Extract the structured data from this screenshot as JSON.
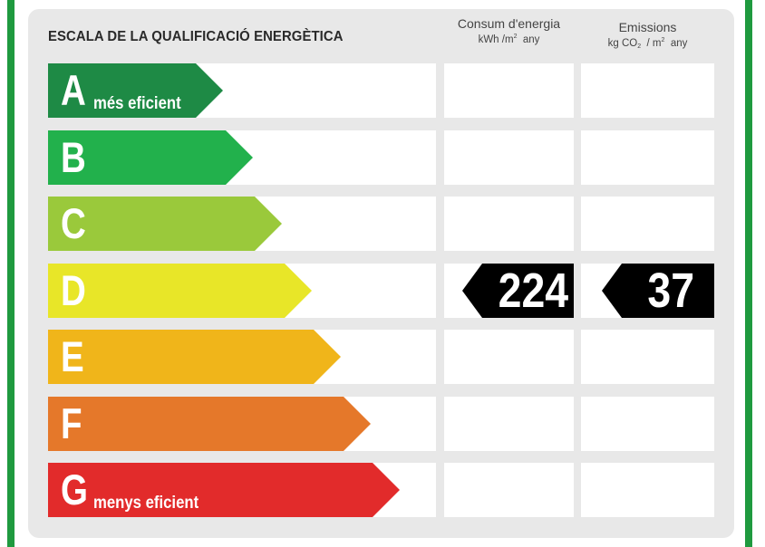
{
  "header": {
    "title": "ESCALA DE LA QUALIFICACIÓ ENERGÈTICA",
    "consumption": {
      "label": "Consum d'energia",
      "unit_base": "kWh /m",
      "unit_exp": "2",
      "unit_tail": "any"
    },
    "emissions": {
      "label": "Emissions",
      "unit_a": "kg CO",
      "unit_sub": "2",
      "unit_b": "/ m",
      "unit_exp": "2",
      "unit_tail": "any"
    }
  },
  "ratings": [
    {
      "letter": "A",
      "sublabel": "més eficient",
      "color": "#1e8a45"
    },
    {
      "letter": "B",
      "sublabel": "",
      "color": "#22b14c"
    },
    {
      "letter": "C",
      "sublabel": "",
      "color": "#9ac93b"
    },
    {
      "letter": "D",
      "sublabel": "",
      "color": "#e8e628"
    },
    {
      "letter": "E",
      "sublabel": "",
      "color": "#f0b51a"
    },
    {
      "letter": "F",
      "sublabel": "",
      "color": "#e5782a"
    },
    {
      "letter": "G",
      "sublabel": "menys eficient",
      "color": "#e22b2b"
    }
  ],
  "result": {
    "rating": "D",
    "consumption_value": "224",
    "emissions_value": "37"
  },
  "colors": {
    "frame_green": "#1f9a3f",
    "panel_gray": "#e8e8e8",
    "value_tag": "#000000"
  }
}
